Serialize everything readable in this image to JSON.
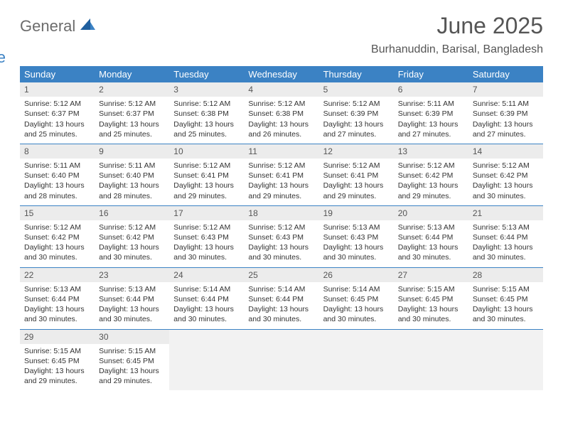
{
  "brand": {
    "part1": "General",
    "part2": "Blue"
  },
  "title": "June 2025",
  "location": "Burhanuddin, Barisal, Bangladesh",
  "colors": {
    "header_bg": "#3b82c4",
    "header_text": "#ffffff",
    "daynum_bg": "#ececec",
    "border": "#3b82c4"
  },
  "weekdays": [
    "Sunday",
    "Monday",
    "Tuesday",
    "Wednesday",
    "Thursday",
    "Friday",
    "Saturday"
  ],
  "weeks": [
    [
      {
        "n": "1",
        "sr": "Sunrise: 5:12 AM",
        "ss": "Sunset: 6:37 PM",
        "d1": "Daylight: 13 hours",
        "d2": "and 25 minutes."
      },
      {
        "n": "2",
        "sr": "Sunrise: 5:12 AM",
        "ss": "Sunset: 6:37 PM",
        "d1": "Daylight: 13 hours",
        "d2": "and 25 minutes."
      },
      {
        "n": "3",
        "sr": "Sunrise: 5:12 AM",
        "ss": "Sunset: 6:38 PM",
        "d1": "Daylight: 13 hours",
        "d2": "and 25 minutes."
      },
      {
        "n": "4",
        "sr": "Sunrise: 5:12 AM",
        "ss": "Sunset: 6:38 PM",
        "d1": "Daylight: 13 hours",
        "d2": "and 26 minutes."
      },
      {
        "n": "5",
        "sr": "Sunrise: 5:12 AM",
        "ss": "Sunset: 6:39 PM",
        "d1": "Daylight: 13 hours",
        "d2": "and 27 minutes."
      },
      {
        "n": "6",
        "sr": "Sunrise: 5:11 AM",
        "ss": "Sunset: 6:39 PM",
        "d1": "Daylight: 13 hours",
        "d2": "and 27 minutes."
      },
      {
        "n": "7",
        "sr": "Sunrise: 5:11 AM",
        "ss": "Sunset: 6:39 PM",
        "d1": "Daylight: 13 hours",
        "d2": "and 27 minutes."
      }
    ],
    [
      {
        "n": "8",
        "sr": "Sunrise: 5:11 AM",
        "ss": "Sunset: 6:40 PM",
        "d1": "Daylight: 13 hours",
        "d2": "and 28 minutes."
      },
      {
        "n": "9",
        "sr": "Sunrise: 5:11 AM",
        "ss": "Sunset: 6:40 PM",
        "d1": "Daylight: 13 hours",
        "d2": "and 28 minutes."
      },
      {
        "n": "10",
        "sr": "Sunrise: 5:12 AM",
        "ss": "Sunset: 6:41 PM",
        "d1": "Daylight: 13 hours",
        "d2": "and 29 minutes."
      },
      {
        "n": "11",
        "sr": "Sunrise: 5:12 AM",
        "ss": "Sunset: 6:41 PM",
        "d1": "Daylight: 13 hours",
        "d2": "and 29 minutes."
      },
      {
        "n": "12",
        "sr": "Sunrise: 5:12 AM",
        "ss": "Sunset: 6:41 PM",
        "d1": "Daylight: 13 hours",
        "d2": "and 29 minutes."
      },
      {
        "n": "13",
        "sr": "Sunrise: 5:12 AM",
        "ss": "Sunset: 6:42 PM",
        "d1": "Daylight: 13 hours",
        "d2": "and 29 minutes."
      },
      {
        "n": "14",
        "sr": "Sunrise: 5:12 AM",
        "ss": "Sunset: 6:42 PM",
        "d1": "Daylight: 13 hours",
        "d2": "and 30 minutes."
      }
    ],
    [
      {
        "n": "15",
        "sr": "Sunrise: 5:12 AM",
        "ss": "Sunset: 6:42 PM",
        "d1": "Daylight: 13 hours",
        "d2": "and 30 minutes."
      },
      {
        "n": "16",
        "sr": "Sunrise: 5:12 AM",
        "ss": "Sunset: 6:42 PM",
        "d1": "Daylight: 13 hours",
        "d2": "and 30 minutes."
      },
      {
        "n": "17",
        "sr": "Sunrise: 5:12 AM",
        "ss": "Sunset: 6:43 PM",
        "d1": "Daylight: 13 hours",
        "d2": "and 30 minutes."
      },
      {
        "n": "18",
        "sr": "Sunrise: 5:12 AM",
        "ss": "Sunset: 6:43 PM",
        "d1": "Daylight: 13 hours",
        "d2": "and 30 minutes."
      },
      {
        "n": "19",
        "sr": "Sunrise: 5:13 AM",
        "ss": "Sunset: 6:43 PM",
        "d1": "Daylight: 13 hours",
        "d2": "and 30 minutes."
      },
      {
        "n": "20",
        "sr": "Sunrise: 5:13 AM",
        "ss": "Sunset: 6:44 PM",
        "d1": "Daylight: 13 hours",
        "d2": "and 30 minutes."
      },
      {
        "n": "21",
        "sr": "Sunrise: 5:13 AM",
        "ss": "Sunset: 6:44 PM",
        "d1": "Daylight: 13 hours",
        "d2": "and 30 minutes."
      }
    ],
    [
      {
        "n": "22",
        "sr": "Sunrise: 5:13 AM",
        "ss": "Sunset: 6:44 PM",
        "d1": "Daylight: 13 hours",
        "d2": "and 30 minutes."
      },
      {
        "n": "23",
        "sr": "Sunrise: 5:13 AM",
        "ss": "Sunset: 6:44 PM",
        "d1": "Daylight: 13 hours",
        "d2": "and 30 minutes."
      },
      {
        "n": "24",
        "sr": "Sunrise: 5:14 AM",
        "ss": "Sunset: 6:44 PM",
        "d1": "Daylight: 13 hours",
        "d2": "and 30 minutes."
      },
      {
        "n": "25",
        "sr": "Sunrise: 5:14 AM",
        "ss": "Sunset: 6:44 PM",
        "d1": "Daylight: 13 hours",
        "d2": "and 30 minutes."
      },
      {
        "n": "26",
        "sr": "Sunrise: 5:14 AM",
        "ss": "Sunset: 6:45 PM",
        "d1": "Daylight: 13 hours",
        "d2": "and 30 minutes."
      },
      {
        "n": "27",
        "sr": "Sunrise: 5:15 AM",
        "ss": "Sunset: 6:45 PM",
        "d1": "Daylight: 13 hours",
        "d2": "and 30 minutes."
      },
      {
        "n": "28",
        "sr": "Sunrise: 5:15 AM",
        "ss": "Sunset: 6:45 PM",
        "d1": "Daylight: 13 hours",
        "d2": "and 30 minutes."
      }
    ],
    [
      {
        "n": "29",
        "sr": "Sunrise: 5:15 AM",
        "ss": "Sunset: 6:45 PM",
        "d1": "Daylight: 13 hours",
        "d2": "and 29 minutes."
      },
      {
        "n": "30",
        "sr": "Sunrise: 5:15 AM",
        "ss": "Sunset: 6:45 PM",
        "d1": "Daylight: 13 hours",
        "d2": "and 29 minutes."
      },
      null,
      null,
      null,
      null,
      null
    ]
  ]
}
